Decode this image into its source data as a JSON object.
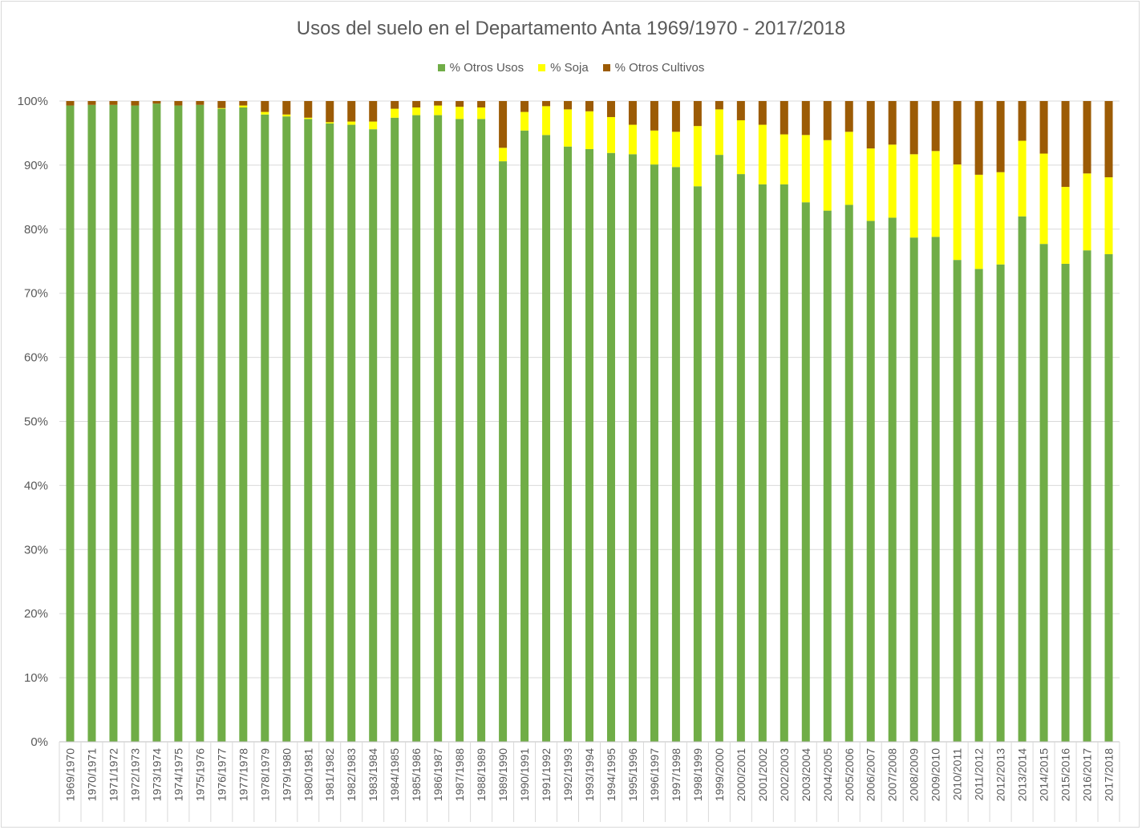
{
  "chart_data": {
    "type": "bar",
    "stacked": true,
    "percent": true,
    "title": "Usos del suelo en el Departamento Anta 1969/1970 - 2017/2018",
    "legend_position": "top",
    "ylim": [
      0,
      100
    ],
    "yticks": [
      "0%",
      "10%",
      "20%",
      "30%",
      "40%",
      "50%",
      "60%",
      "70%",
      "80%",
      "90%",
      "100%"
    ],
    "categories": [
      "1969/1970",
      "1970/1971",
      "1971/1972",
      "1972/1973",
      "1973/1974",
      "1974/1975",
      "1975/1976",
      "1976/1977",
      "1977/1978",
      "1978/1979",
      "1979/1980",
      "1980/1981",
      "1981/1982",
      "1982/1983",
      "1983/1984",
      "1984/1985",
      "1985/1986",
      "1986/1987",
      "1987/1988",
      "1988/1989",
      "1989/1990",
      "1990/1991",
      "1991/1992",
      "1992/1993",
      "1993/1994",
      "1994/1995",
      "1995/1996",
      "1996/1997",
      "1997/1998",
      "1998/1999",
      "1999/2000",
      "2000/2001",
      "2001/2002",
      "2002/2003",
      "2003/2004",
      "2004/2005",
      "2005/2006",
      "2006/2007",
      "2007/2008",
      "2008/2009",
      "2009/2010",
      "2010/2011",
      "2011/2012",
      "2012/2013",
      "2013/2014",
      "2014/2015",
      "2015/2016",
      "2016/2017",
      "2017/2018"
    ],
    "series": [
      {
        "name": "% Otros Usos",
        "color": "#70ad47",
        "values": [
          99.3,
          99.4,
          99.4,
          99.3,
          99.6,
          99.3,
          99.4,
          98.8,
          99.0,
          97.9,
          97.6,
          97.2,
          96.5,
          96.3,
          95.6,
          97.4,
          97.8,
          97.8,
          97.2,
          97.2,
          90.6,
          95.4,
          94.7,
          92.9,
          92.5,
          91.9,
          91.7,
          90.1,
          89.7,
          86.7,
          91.6,
          88.6,
          87.0,
          87.0,
          84.2,
          82.9,
          83.8,
          81.3,
          81.8,
          78.7,
          78.8,
          75.2,
          73.8,
          74.5,
          82.0,
          77.7,
          74.6,
          76.7,
          76.1
        ]
      },
      {
        "name": "% Soja",
        "color": "#ffff00",
        "values": [
          0.0,
          0.0,
          0.0,
          0.0,
          0.0,
          0.0,
          0.0,
          0.1,
          0.3,
          0.4,
          0.3,
          0.2,
          0.2,
          0.5,
          1.2,
          1.4,
          1.2,
          1.5,
          1.9,
          1.8,
          2.1,
          2.9,
          4.5,
          5.8,
          5.9,
          5.6,
          4.6,
          5.3,
          5.5,
          9.4,
          7.1,
          8.4,
          9.3,
          7.8,
          10.5,
          11.0,
          11.4,
          11.3,
          11.4,
          13.0,
          13.4,
          14.9,
          14.7,
          14.4,
          11.8,
          14.1,
          12.0,
          12.0,
          12.0
        ]
      },
      {
        "name": "% Otros Cultivos",
        "color": "#9c5b05",
        "values": [
          0.7,
          0.6,
          0.6,
          0.7,
          0.4,
          0.7,
          0.6,
          1.1,
          0.7,
          1.7,
          2.1,
          2.6,
          3.3,
          3.2,
          3.2,
          1.2,
          1.0,
          0.7,
          0.9,
          1.0,
          7.3,
          1.7,
          0.8,
          1.3,
          1.6,
          2.5,
          3.7,
          4.6,
          4.8,
          3.9,
          1.3,
          3.0,
          3.7,
          5.2,
          5.3,
          6.1,
          4.8,
          7.4,
          6.8,
          8.3,
          7.8,
          9.9,
          11.5,
          11.1,
          6.2,
          8.2,
          13.4,
          11.3,
          11.9
        ]
      }
    ]
  }
}
